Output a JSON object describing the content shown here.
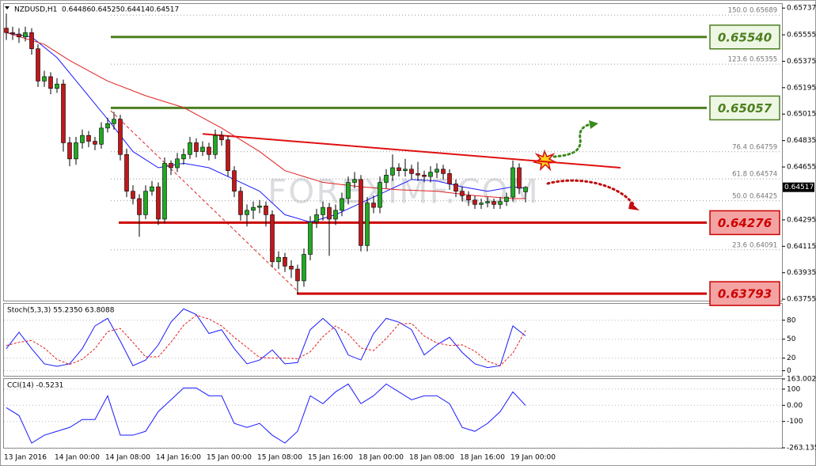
{
  "chart_data": [
    {
      "type": "candlestick",
      "title": "NZDUSD,H1",
      "watermark": "FOREXIMF.COM",
      "up_color": "#22a822",
      "down_color": "#c0181c",
      "categories": [
        "13 Jan 2016",
        null,
        null,
        null,
        null,
        null,
        null,
        null,
        "14 Jan 00:00",
        null,
        null,
        null,
        null,
        null,
        null,
        null,
        "14 Jan 08:00",
        null,
        null,
        null,
        null,
        null,
        null,
        null,
        "14 Jan 16:00",
        null,
        null,
        null,
        null,
        null,
        null,
        null,
        "15 Jan 00:00",
        null,
        null,
        null,
        null,
        null,
        null,
        null,
        "15 Jan 08:00",
        null,
        null,
        null,
        null,
        null,
        null,
        null,
        "15 Jan 16:00",
        null,
        null,
        null,
        null,
        null,
        null,
        null,
        "18 Jan 00:00",
        null,
        null,
        null,
        null,
        null,
        null,
        null,
        "18 Jan 08:00",
        null,
        null,
        null,
        null,
        null,
        null,
        null,
        "18 Jan 16:00",
        null,
        null,
        null,
        null,
        null,
        null,
        null,
        "19 Jan 00:00",
        null,
        null
      ],
      "ohlc": [
        [
          0.656,
          0.657,
          0.6552,
          0.6557
        ],
        [
          0.6557,
          0.6561,
          0.6552,
          0.6556
        ],
        [
          0.6556,
          0.656,
          0.655,
          0.6554
        ],
        [
          0.6554,
          0.6561,
          0.6551,
          0.6557
        ],
        [
          0.6557,
          0.656,
          0.6542,
          0.6546
        ],
        [
          0.6546,
          0.6549,
          0.652,
          0.6524
        ],
        [
          0.6524,
          0.6531,
          0.652,
          0.6527
        ],
        [
          0.6527,
          0.653,
          0.6515,
          0.6519
        ],
        [
          0.6519,
          0.6526,
          0.6516,
          0.6522
        ],
        [
          0.6522,
          0.6525,
          0.6476,
          0.6482
        ],
        [
          0.6482,
          0.6486,
          0.6466,
          0.6471
        ],
        [
          0.6471,
          0.6486,
          0.6467,
          0.6482
        ],
        [
          0.6482,
          0.6491,
          0.6478,
          0.6487
        ],
        [
          0.6487,
          0.649,
          0.6479,
          0.6483
        ],
        [
          0.6483,
          0.6486,
          0.6477,
          0.6481
        ],
        [
          0.6481,
          0.6496,
          0.6478,
          0.6492
        ],
        [
          0.6492,
          0.6499,
          0.6489,
          0.6495
        ],
        [
          0.6495,
          0.6503,
          0.6491,
          0.6498
        ],
        [
          0.6498,
          0.6501,
          0.647,
          0.6474
        ],
        [
          0.6474,
          0.6478,
          0.6445,
          0.6449
        ],
        [
          0.6449,
          0.6453,
          0.644,
          0.6444
        ],
        [
          0.6444,
          0.6447,
          0.6418,
          0.6433
        ],
        [
          0.6433,
          0.6453,
          0.643,
          0.6449
        ],
        [
          0.6449,
          0.6456,
          0.6446,
          0.6452
        ],
        [
          0.6452,
          0.6455,
          0.6426,
          0.643
        ],
        [
          0.643,
          0.6472,
          0.6427,
          0.6468
        ],
        [
          0.6468,
          0.647,
          0.646,
          0.6465
        ],
        [
          0.6465,
          0.6475,
          0.6462,
          0.6471
        ],
        [
          0.6471,
          0.6478,
          0.6467,
          0.6474
        ],
        [
          0.6474,
          0.6486,
          0.6471,
          0.6482
        ],
        [
          0.6482,
          0.6485,
          0.6472,
          0.6476
        ],
        [
          0.6476,
          0.6483,
          0.6473,
          0.6479
        ],
        [
          0.6479,
          0.6482,
          0.647,
          0.6474
        ],
        [
          0.6474,
          0.6491,
          0.6471,
          0.6487
        ],
        [
          0.6487,
          0.649,
          0.648,
          0.6484
        ],
        [
          0.6484,
          0.6487,
          0.6459,
          0.6463
        ],
        [
          0.6463,
          0.6466,
          0.6445,
          0.6449
        ],
        [
          0.6449,
          0.6452,
          0.6429,
          0.6433
        ],
        [
          0.6433,
          0.644,
          0.6425,
          0.6436
        ],
        [
          0.6436,
          0.6442,
          0.643,
          0.6438
        ],
        [
          0.6438,
          0.6443,
          0.6434,
          0.6439
        ],
        [
          0.6439,
          0.6442,
          0.6425,
          0.6433
        ],
        [
          0.6433,
          0.6436,
          0.6397,
          0.6401
        ],
        [
          0.6401,
          0.6408,
          0.6396,
          0.6404
        ],
        [
          0.6404,
          0.6407,
          0.6394,
          0.6398
        ],
        [
          0.6398,
          0.6402,
          0.639,
          0.6396
        ],
        [
          0.6396,
          0.6399,
          0.6379,
          0.6388
        ],
        [
          0.6388,
          0.641,
          0.6384,
          0.6406
        ],
        [
          0.6406,
          0.6432,
          0.6402,
          0.6428
        ],
        [
          0.6428,
          0.6437,
          0.6424,
          0.6433
        ],
        [
          0.6433,
          0.6442,
          0.6429,
          0.6438
        ],
        [
          0.6438,
          0.6441,
          0.6405,
          0.643
        ],
        [
          0.643,
          0.644,
          0.6426,
          0.6436
        ],
        [
          0.6436,
          0.6448,
          0.6432,
          0.6444
        ],
        [
          0.6444,
          0.6459,
          0.644,
          0.6455
        ],
        [
          0.6455,
          0.6462,
          0.6451,
          0.6457
        ],
        [
          0.6457,
          0.646,
          0.6408,
          0.6412
        ],
        [
          0.6412,
          0.6445,
          0.6408,
          0.6441
        ],
        [
          0.6441,
          0.6446,
          0.6434,
          0.6438
        ],
        [
          0.6438,
          0.6459,
          0.6434,
          0.6455
        ],
        [
          0.6455,
          0.6464,
          0.6451,
          0.646
        ],
        [
          0.646,
          0.6474,
          0.6456,
          0.6465
        ],
        [
          0.6465,
          0.6468,
          0.6459,
          0.6463
        ],
        [
          0.6463,
          0.6471,
          0.6459,
          0.6464
        ],
        [
          0.6464,
          0.6467,
          0.6457,
          0.6461
        ],
        [
          0.6461,
          0.6469,
          0.6456,
          0.646
        ],
        [
          0.646,
          0.6463,
          0.6455,
          0.6459
        ],
        [
          0.6459,
          0.6466,
          0.6455,
          0.6462
        ],
        [
          0.6462,
          0.6468,
          0.6458,
          0.6464
        ],
        [
          0.6464,
          0.6467,
          0.6457,
          0.6461
        ],
        [
          0.6461,
          0.6464,
          0.645,
          0.6454
        ],
        [
          0.6454,
          0.6457,
          0.6445,
          0.6449
        ],
        [
          0.6449,
          0.6452,
          0.6442,
          0.6446
        ],
        [
          0.6446,
          0.6449,
          0.6439,
          0.6443
        ],
        [
          0.6443,
          0.6446,
          0.6437,
          0.644
        ],
        [
          0.644,
          0.6444,
          0.6437,
          0.6441
        ],
        [
          0.6441,
          0.6445,
          0.6438,
          0.6442
        ],
        [
          0.6442,
          0.6444,
          0.6437,
          0.644
        ],
        [
          0.644,
          0.6445,
          0.6437,
          0.6442
        ],
        [
          0.6442,
          0.6448,
          0.6439,
          0.6445
        ],
        [
          0.6445,
          0.647,
          0.6442,
          0.6465
        ],
        [
          0.6465,
          0.6468,
          0.6447,
          0.6451
        ],
        [
          0.64486,
          0.64525,
          0.64414,
          0.64517
        ]
      ],
      "overlays": [
        {
          "color": "#1a1aff",
          "x": [
            0,
            4,
            8,
            12,
            16,
            20,
            24,
            28,
            32,
            36,
            40,
            44,
            48,
            52,
            56,
            60,
            64,
            68,
            72,
            76,
            80,
            82
          ],
          "values": [
            0.6557,
            0.6554,
            0.654,
            0.6519,
            0.6498,
            0.6476,
            0.6465,
            0.6468,
            0.6465,
            0.6457,
            0.6449,
            0.6433,
            0.6428,
            0.6433,
            0.6441,
            0.6449,
            0.6457,
            0.6456,
            0.6452,
            0.6449,
            0.6452,
            0.6451
          ]
        },
        {
          "color": "#e02020",
          "x": [
            0,
            6,
            10,
            16,
            22,
            28,
            34,
            40,
            44,
            50,
            56,
            62,
            68,
            74,
            80,
            82
          ],
          "values": [
            0.6557,
            0.6549,
            0.6538,
            0.6524,
            0.6514,
            0.6506,
            0.6492,
            0.6476,
            0.6463,
            0.6455,
            0.6452,
            0.645,
            0.6449,
            0.6446,
            0.6444,
            0.6444
          ]
        }
      ],
      "trendline": {
        "color": "#e01010",
        "x": [
          31,
          97
        ],
        "values": [
          0.6488,
          0.6465
        ]
      },
      "levels": [
        {
          "value": 0.6554,
          "label": "0.65540",
          "color": "#4d7f1f",
          "fill": "#eef7e4"
        },
        {
          "value": 0.65057,
          "label": "0.65057",
          "color": "#4d7f1f",
          "fill": "#eef7e4"
        },
        {
          "value": 0.64276,
          "label": "0.64276",
          "color": "#cc0000",
          "fill": "#f4a3a3"
        },
        {
          "value": 0.63793,
          "label": "0.63793",
          "color": "#cc0000",
          "fill": "#f4a3a3"
        }
      ],
      "fib": [
        {
          "ratio": "150.0",
          "price": 0.65689
        },
        {
          "ratio": "123.6",
          "price": 0.65355
        },
        {
          "ratio": "76.4",
          "price": 0.64759
        },
        {
          "ratio": "61.8",
          "price": 0.64574
        },
        {
          "ratio": "50.0",
          "price": 0.64425
        },
        {
          "ratio": "23.6",
          "price": 0.64091
        }
      ],
      "ylim": [
        0.63745,
        0.65765
      ],
      "yticks": [
        0.65737,
        0.65555,
        0.65375,
        0.65195,
        0.65015,
        0.64835,
        0.64655,
        0.64295,
        0.64115,
        0.63935,
        0.63755
      ]
    },
    {
      "type": "line",
      "title": "Stoch(5,3,3) 55.2350 63.8088",
      "x": [
        0,
        2,
        4,
        6,
        8,
        10,
        12,
        14,
        16,
        18,
        20,
        22,
        24,
        26,
        28,
        30,
        32,
        34,
        36,
        38,
        40,
        42,
        44,
        46,
        48,
        50,
        52,
        54,
        56,
        58,
        60,
        62,
        64,
        66,
        68,
        70,
        72,
        74,
        76,
        78,
        80,
        82
      ],
      "series": [
        {
          "color": "#1a1aff",
          "style": "solid",
          "values": [
            35,
            61,
            35,
            11,
            7,
            11,
            35,
            71,
            83,
            47,
            8,
            17,
            41,
            77,
            98,
            89,
            59,
            65,
            35,
            11,
            17,
            33,
            11,
            13,
            65,
            83,
            65,
            25,
            17,
            59,
            83,
            77,
            65,
            25,
            41,
            53,
            29,
            11,
            5,
            8,
            71,
            55.235
          ]
        },
        {
          "color": "#e02020",
          "style": "dashed",
          "values": [
            40,
            45,
            48,
            36,
            18,
            10,
            18,
            35,
            62,
            67,
            45,
            22,
            22,
            45,
            72,
            88,
            82,
            71,
            53,
            37,
            21,
            20,
            20,
            19,
            30,
            54,
            71,
            58,
            36,
            32,
            51,
            74,
            75,
            55,
            44,
            40,
            41,
            31,
            15,
            8,
            28,
            63.8088
          ]
        }
      ],
      "ylim": [
        -8,
        106
      ],
      "yticks": [
        80,
        50,
        20,
        0
      ]
    },
    {
      "type": "line",
      "title": "CCI(14) -0.5231",
      "x": [
        0,
        2,
        4,
        6,
        8,
        10,
        12,
        14,
        16,
        18,
        20,
        22,
        24,
        26,
        28,
        30,
        32,
        34,
        36,
        38,
        40,
        42,
        44,
        46,
        48,
        50,
        52,
        54,
        56,
        58,
        60,
        62,
        64,
        66,
        68,
        70,
        72,
        74,
        76,
        78,
        80,
        82
      ],
      "series": [
        {
          "color": "#1a1aff",
          "style": "solid",
          "values": [
            -15,
            -63,
            -234,
            -185,
            -161,
            -137,
            -88,
            -88,
            59,
            -185,
            -185,
            -161,
            -39,
            34,
            107,
            107,
            59,
            59,
            -112,
            -137,
            -112,
            -185,
            -234,
            -161,
            59,
            10,
            83,
            132,
            10,
            59,
            132,
            83,
            34,
            59,
            59,
            10,
            -137,
            -161,
            -112,
            -39,
            83,
            -0.5231
          ]
        }
      ],
      "ylim": [
        -263.1354,
        163.002
      ],
      "yticks": [
        163.002,
        100,
        {
          "value": 0,
          "label": "0.00"
        },
        -100,
        -263.1354
      ]
    }
  ]
}
